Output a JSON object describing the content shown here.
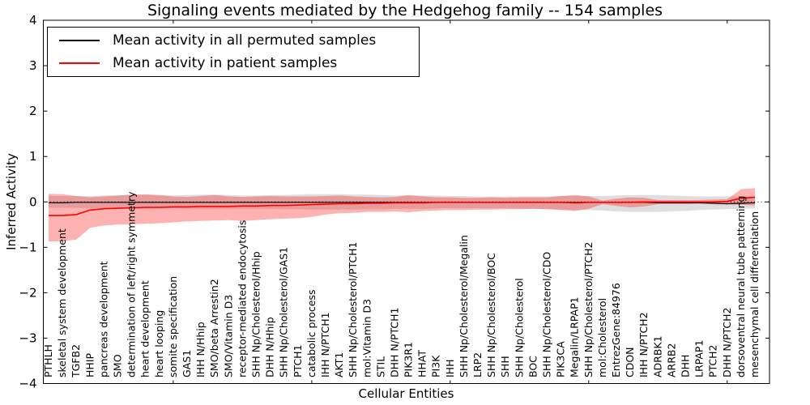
{
  "title": "Signaling events mediated by the Hedgehog family -- 154 samples",
  "legend": [
    {
      "label": "Mean activity in all permuted samples",
      "color": "#000000"
    },
    {
      "label": "Mean activity in patient samples",
      "color": "#ff0000"
    }
  ],
  "axes": {
    "ylabel": "Inferred Activity",
    "xlabel": "Cellular Entities"
  },
  "chart_data": {
    "type": "line",
    "title": "Signaling events mediated by the Hedgehog family -- 154 samples",
    "xlabel": "Cellular Entities",
    "ylabel": "Inferred Activity",
    "ylim": [
      -4,
      4
    ],
    "yticks": [
      4,
      3,
      2,
      1,
      0,
      -1,
      -2,
      -3,
      -4
    ],
    "ytick_labels": [
      "4",
      "3",
      "2",
      "1",
      "0",
      "−1",
      "−2",
      "−3",
      "−4"
    ],
    "grid": false,
    "legend_position": "upper left",
    "zero_line_style": "dotted",
    "x_tick_marks_at": [
      10,
      20,
      30,
      40,
      50
    ],
    "categories": [
      "PTHLH",
      "skeletal system development",
      "TGFB2",
      "HHIP",
      "pancreas development",
      "SMO",
      "determination of left/right symmetry",
      "heart development",
      "heart looping",
      "somite specification",
      "GAS1",
      "IHH N/Hhip",
      "SMO/beta Arrestin2",
      "SMO/Vitamin D3",
      "receptor-mediated endocytosis",
      "SHH Np/Cholesterol/Hhip",
      "DHH N/Hhip",
      "SHH Np/Cholesterol/GAS1",
      "PTCH1",
      "catabolic process",
      "IHH N/PTCH1",
      "AKT1",
      "SHH Np/Cholesterol/PTCH1",
      "mol:Vitamin D3",
      "STIL",
      "DHH N/PTCH1",
      "PIK3R1",
      "HHAT",
      "PI3K",
      "IHH",
      "SHH Np/Cholesterol/Megalin",
      "LRP2",
      "SHH Np/Cholesterol/BOC",
      "SHH",
      "SHH Np/Cholesterol",
      "BOC",
      "SHH Np/Cholesterol/CDO",
      "PIK3CA",
      "Megalin/LRPAP1",
      "SHH Np/Cholesterol/PTCH2",
      "mol:Cholesterol",
      "EntrezGene:84976",
      "CDON",
      "IHH N/PTCH2",
      "ADRBK1",
      "ARRB2",
      "DHH",
      "LRPAP1",
      "PTCH2",
      "DHH N/PTCH2",
      "dorsoventral neural tube patterning",
      "mesenchymal cell differentiation"
    ],
    "series": [
      {
        "name": "Mean activity in all permuted samples",
        "color": "#000000",
        "line_width": 1.2,
        "band_opacity": 0.13,
        "values": [
          -0.02,
          -0.02,
          -0.01,
          -0.01,
          -0.01,
          -0.01,
          -0.01,
          -0.01,
          -0.01,
          -0.01,
          -0.01,
          -0.01,
          -0.01,
          -0.01,
          -0.01,
          -0.01,
          -0.01,
          -0.01,
          -0.01,
          -0.01,
          -0.01,
          -0.01,
          -0.01,
          -0.01,
          -0.01,
          -0.01,
          -0.01,
          -0.01,
          -0.01,
          -0.01,
          -0.01,
          -0.01,
          -0.01,
          -0.01,
          -0.01,
          -0.01,
          -0.01,
          -0.01,
          -0.01,
          -0.01,
          -0.01,
          -0.01,
          -0.01,
          -0.01,
          -0.02,
          -0.02,
          -0.02,
          -0.02,
          -0.03,
          -0.04,
          -0.03,
          -0.02
        ],
        "band_upper": [
          0.13,
          0.13,
          0.13,
          0.13,
          0.14,
          0.14,
          0.15,
          0.15,
          0.14,
          0.14,
          0.15,
          0.16,
          0.16,
          0.15,
          0.14,
          0.14,
          0.15,
          0.15,
          0.16,
          0.17,
          0.17,
          0.17,
          0.16,
          0.16,
          0.15,
          0.14,
          0.14,
          0.14,
          0.14,
          0.13,
          0.13,
          0.12,
          0.12,
          0.12,
          0.12,
          0.12,
          0.12,
          0.13,
          0.13,
          0.13,
          0.13,
          0.14,
          0.15,
          0.15,
          0.15,
          0.14,
          0.13,
          0.12,
          0.12,
          0.12,
          0.12,
          0.12
        ],
        "band_lower": [
          -0.13,
          -0.13,
          -0.13,
          -0.14,
          -0.14,
          -0.15,
          -0.15,
          -0.15,
          -0.15,
          -0.14,
          -0.15,
          -0.16,
          -0.16,
          -0.15,
          -0.15,
          -0.15,
          -0.15,
          -0.16,
          -0.16,
          -0.17,
          -0.17,
          -0.17,
          -0.17,
          -0.16,
          -0.16,
          -0.15,
          -0.15,
          -0.15,
          -0.14,
          -0.14,
          -0.14,
          -0.14,
          -0.14,
          -0.14,
          -0.15,
          -0.15,
          -0.16,
          -0.17,
          -0.18,
          -0.18,
          -0.19,
          -0.21,
          -0.22,
          -0.22,
          -0.22,
          -0.21,
          -0.2,
          -0.18,
          -0.17,
          -0.16,
          -0.15,
          -0.14
        ]
      },
      {
        "name": "Mean activity in patient samples",
        "color": "#ff0000",
        "line_width": 1.6,
        "band_opacity": 0.3,
        "values": [
          -0.3,
          -0.3,
          -0.28,
          -0.18,
          -0.15,
          -0.14,
          -0.13,
          -0.12,
          -0.12,
          -0.11,
          -0.11,
          -0.1,
          -0.1,
          -0.1,
          -0.09,
          -0.09,
          -0.08,
          -0.08,
          -0.07,
          -0.06,
          -0.05,
          -0.04,
          -0.04,
          -0.03,
          -0.03,
          -0.02,
          -0.02,
          -0.02,
          -0.01,
          -0.01,
          -0.01,
          -0.01,
          -0.01,
          -0.01,
          -0.01,
          -0.01,
          -0.01,
          -0.01,
          -0.02,
          -0.01,
          -0.01,
          -0.01,
          -0.01,
          0.0,
          0.0,
          0.0,
          0.0,
          0.0,
          0.0,
          0.01,
          0.08,
          0.1
        ],
        "band_upper": [
          0.18,
          0.17,
          0.13,
          0.1,
          0.12,
          0.14,
          0.16,
          0.17,
          0.15,
          0.12,
          0.11,
          0.13,
          0.15,
          0.12,
          0.11,
          0.12,
          0.13,
          0.12,
          0.12,
          0.12,
          0.13,
          0.14,
          0.12,
          0.11,
          0.1,
          0.11,
          0.15,
          0.12,
          0.1,
          0.1,
          0.09,
          0.09,
          0.1,
          0.09,
          0.1,
          0.1,
          0.1,
          0.13,
          0.15,
          0.12,
          0.03,
          0.07,
          0.1,
          0.09,
          0.04,
          0.04,
          0.04,
          0.04,
          0.05,
          0.06,
          0.28,
          0.3
        ],
        "band_lower": [
          -0.87,
          -0.87,
          -0.83,
          -0.57,
          -0.52,
          -0.5,
          -0.49,
          -0.48,
          -0.47,
          -0.45,
          -0.43,
          -0.42,
          -0.41,
          -0.4,
          -0.42,
          -0.4,
          -0.38,
          -0.37,
          -0.36,
          -0.33,
          -0.28,
          -0.25,
          -0.24,
          -0.22,
          -0.22,
          -0.21,
          -0.23,
          -0.2,
          -0.19,
          -0.18,
          -0.18,
          -0.17,
          -0.17,
          -0.16,
          -0.16,
          -0.15,
          -0.16,
          -0.18,
          -0.2,
          -0.15,
          -0.05,
          -0.09,
          -0.12,
          -0.1,
          -0.05,
          -0.05,
          -0.05,
          -0.04,
          -0.05,
          -0.06,
          -0.06,
          -0.08
        ]
      }
    ]
  }
}
